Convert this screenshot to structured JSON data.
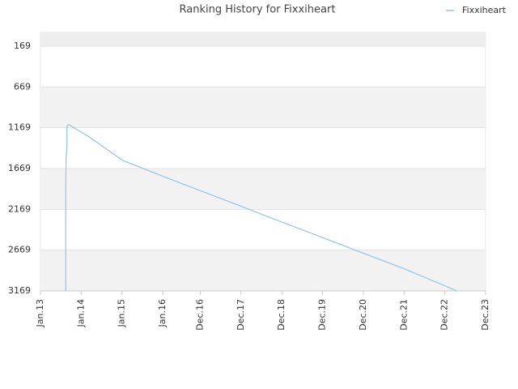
{
  "chart_data": {
    "type": "line",
    "title": "Ranking History for Fixxiheart",
    "x": [
      2013.62,
      2013.62,
      2013.63,
      2013.65,
      2013.65,
      2013.69,
      2014.19,
      2014.59,
      2015.02,
      2015.98,
      2017.96,
      2019.94,
      2021.93,
      2023.22
    ],
    "series": [
      {
        "name": "Fixxiheart",
        "color": "#8ec4ee",
        "values": [
          3169,
          1879,
          1519,
          1399,
          1149,
          1129,
          1279,
          1419,
          1569,
          1759,
          2139,
          2519,
          2899,
          3169
        ]
      }
    ],
    "ylim": [
      3169,
      0
    ],
    "yticks": [
      169,
      669,
      1169,
      1669,
      2169,
      2669,
      3169
    ],
    "xlim": [
      2013.0,
      2023.92
    ],
    "xticks": [
      {
        "value": 2013.0,
        "label": "Jan.13"
      },
      {
        "value": 2014.0,
        "label": "Jan.14"
      },
      {
        "value": 2015.0,
        "label": "Jan.15"
      },
      {
        "value": 2016.0,
        "label": "Jan.16"
      },
      {
        "value": 2016.92,
        "label": "Dec.16"
      },
      {
        "value": 2017.92,
        "label": "Dec.17"
      },
      {
        "value": 2018.92,
        "label": "Dec.18"
      },
      {
        "value": 2019.92,
        "label": "Dec.19"
      },
      {
        "value": 2020.92,
        "label": "Dec.20"
      },
      {
        "value": 2021.92,
        "label": "Dec.21"
      },
      {
        "value": 2022.92,
        "label": "Dec.22"
      },
      {
        "value": 2023.92,
        "label": "Dec.23"
      }
    ],
    "grid": true,
    "legend": "top-right"
  }
}
